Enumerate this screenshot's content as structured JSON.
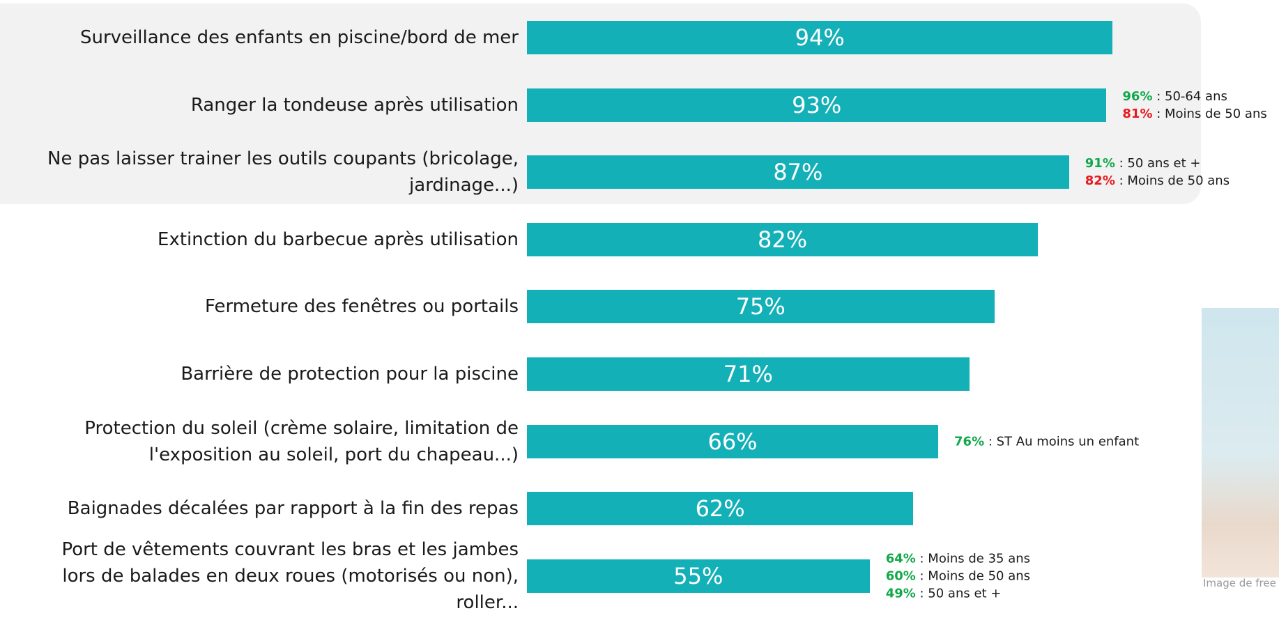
{
  "chart_data": {
    "type": "bar",
    "orientation": "horizontal",
    "categories": [
      "Surveillance des enfants en piscine/bord de mer",
      "Ranger la tondeuse après utilisation",
      "Ne pas laisser trainer les outils coupants (bricolage,\njardinage...)",
      "Extinction du barbecue après utilisation",
      "Fermeture des fenêtres ou portails",
      "Barrière de protection pour la piscine",
      "Protection du soleil (crème solaire, limitation de\nl'exposition au soleil, port du chapeau...)",
      "Baignades décalées par rapport à la fin des repas",
      "Port de vêtements couvrant les bras et les jambes\nlors de balades en deux roues (motorisés ou non),\nroller..."
    ],
    "values": [
      94,
      93,
      87,
      82,
      75,
      71,
      66,
      62,
      55
    ],
    "value_labels": [
      "94%",
      "93%",
      "87%",
      "82%",
      "75%",
      "71%",
      "66%",
      "62%",
      "55%"
    ],
    "color": "#14b0b8",
    "xlim": [
      0,
      100
    ],
    "annotations": [
      null,
      [
        {
          "label": "96%",
          "text": " : 50-64 ans",
          "color": "#12a84a"
        },
        {
          "label": "81%",
          "text": " : Moins de 50 ans",
          "color": "#e8191e"
        }
      ],
      [
        {
          "label": "91%",
          "text": " : 50 ans et +",
          "color": "#12a84a"
        },
        {
          "label": "82%",
          "text": " : Moins de 50 ans",
          "color": "#e8191e"
        }
      ],
      null,
      null,
      null,
      [
        {
          "label": "76%",
          "text": " : ST Au moins un enfant",
          "color": "#12a84a"
        }
      ],
      null,
      [
        {
          "label": "64%",
          "text": " : Moins de 35 ans",
          "color": "#12a84a"
        },
        {
          "label": "60%",
          "text": " : Moins de 50 ans",
          "color": "#12a84a"
        },
        {
          "label": "49%",
          "text": " : 50 ans et +",
          "color": "#12a84a"
        }
      ]
    ]
  },
  "image_caption": "Image de free"
}
